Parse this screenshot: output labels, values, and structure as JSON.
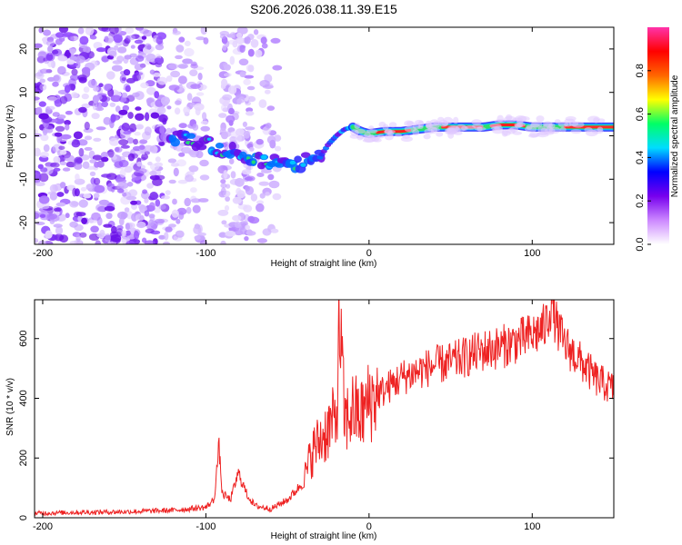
{
  "title": "S206.2026.038.11.39.E15",
  "chart_data": [
    {
      "type": "heatmap",
      "name": "spectrogram",
      "xlabel": "Height of straight line (km)",
      "ylabel": "Frequency (Hz)",
      "xlim": [
        -205,
        150
      ],
      "ylim": [
        -25,
        25
      ],
      "xticks": [
        -200,
        -100,
        0,
        100
      ],
      "xtick_labels": [
        "-200",
        "-100",
        "0",
        "100"
      ],
      "yticks": [
        -20,
        -10,
        0,
        10,
        20
      ],
      "ytick_labels": [
        "-20",
        "-10",
        "0",
        "10",
        "20"
      ],
      "colorbar": {
        "label": "Normalized spectral amplitude",
        "range": [
          0,
          1
        ],
        "ticks": [
          0,
          0.2,
          0.4,
          0.6,
          0.8
        ],
        "tick_labels": [
          "0.0",
          "0.2",
          "0.4",
          "0.6",
          "0.8"
        ],
        "colors": [
          "#ffffff",
          "#cc88ff",
          "#7700ee",
          "#0000ff",
          "#00ddff",
          "#00ff66",
          "#ffff00",
          "#ff6600",
          "#ff0000",
          "#ff33aa"
        ]
      },
      "ridge": {
        "description": "dominant frequency vs height",
        "x": [
          -120,
          -110,
          -100,
          -90,
          -80,
          -70,
          -60,
          -50,
          -40,
          -30,
          -25,
          -20,
          -15,
          -10,
          -5,
          0,
          10,
          20,
          30,
          40,
          50,
          60,
          70,
          80,
          90,
          100,
          110,
          120,
          130,
          140,
          150
        ],
        "y": [
          0,
          -1,
          -2,
          -3,
          -4,
          -5,
          -6,
          -7,
          -6,
          -5,
          -2,
          0,
          1.5,
          2,
          1,
          0.5,
          1,
          1,
          1.5,
          2,
          2,
          2,
          2,
          2.5,
          2.5,
          2,
          2,
          2,
          2,
          2,
          2
        ]
      }
    },
    {
      "type": "line",
      "name": "snr",
      "xlabel": "Height of straight line (km)",
      "ylabel": "SNR (10 * v/v)",
      "xlim": [
        -205,
        150
      ],
      "ylim": [
        0,
        730
      ],
      "xticks": [
        -200,
        -100,
        0,
        100
      ],
      "xtick_labels": [
        "-200",
        "-100",
        "0",
        "100"
      ],
      "yticks": [
        0,
        200,
        400,
        600
      ],
      "ytick_labels": [
        "0",
        "200",
        "400",
        "600"
      ],
      "color": "#ee2222",
      "series": [
        {
          "name": "SNR",
          "x": [
            -205,
            -180,
            -150,
            -120,
            -100,
            -95,
            -92,
            -90,
            -85,
            -80,
            -75,
            -70,
            -60,
            -50,
            -40,
            -35,
            -30,
            -25,
            -20,
            -18,
            -15,
            -10,
            -5,
            0,
            10,
            20,
            30,
            40,
            50,
            60,
            70,
            80,
            90,
            100,
            108,
            112,
            115,
            120,
            130,
            140,
            150
          ],
          "y": [
            15,
            18,
            20,
            25,
            35,
            60,
            240,
            80,
            60,
            150,
            80,
            40,
            30,
            60,
            120,
            220,
            260,
            300,
            330,
            660,
            320,
            360,
            340,
            390,
            430,
            470,
            490,
            510,
            520,
            540,
            560,
            570,
            590,
            610,
            640,
            725,
            640,
            580,
            520,
            460,
            430
          ]
        }
      ]
    }
  ]
}
